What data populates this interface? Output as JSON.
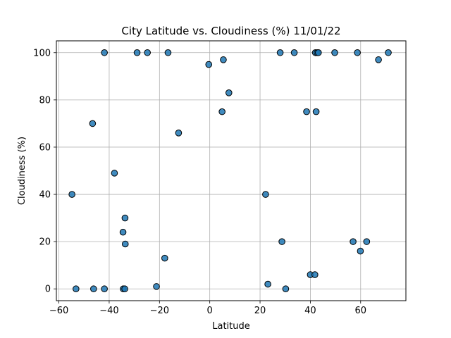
{
  "chart_data": {
    "type": "scatter",
    "title": "City Latitude vs. Cloudiness (%) 11/01/22",
    "xlabel": "Latitude",
    "ylabel": "Cloudiness (%)",
    "xlim": [
      -61,
      78
    ],
    "ylim": [
      -5,
      105
    ],
    "xticks": [
      -60,
      -40,
      -20,
      0,
      20,
      40,
      60
    ],
    "yticks": [
      0,
      20,
      40,
      60,
      80,
      100
    ],
    "grid": true,
    "marker_color": "#1f77b4",
    "marker_edge_color": "#000000",
    "points": [
      {
        "x": -54.8,
        "y": 40
      },
      {
        "x": -53.2,
        "y": 0
      },
      {
        "x": -46.6,
        "y": 70
      },
      {
        "x": -46.2,
        "y": 0
      },
      {
        "x": -41.9,
        "y": 100
      },
      {
        "x": -41.9,
        "y": 0
      },
      {
        "x": -37.9,
        "y": 49
      },
      {
        "x": -34.5,
        "y": 24
      },
      {
        "x": -34.4,
        "y": 0
      },
      {
        "x": -33.8,
        "y": 0
      },
      {
        "x": -33.7,
        "y": 30
      },
      {
        "x": -33.6,
        "y": 19
      },
      {
        "x": -28.9,
        "y": 100
      },
      {
        "x": -24.8,
        "y": 100
      },
      {
        "x": -21.2,
        "y": 1
      },
      {
        "x": -17.9,
        "y": 13
      },
      {
        "x": -16.6,
        "y": 100
      },
      {
        "x": -12.4,
        "y": 66
      },
      {
        "x": -0.4,
        "y": 95
      },
      {
        "x": 4.9,
        "y": 75
      },
      {
        "x": 5.4,
        "y": 97
      },
      {
        "x": 7.6,
        "y": 83
      },
      {
        "x": 22.2,
        "y": 40
      },
      {
        "x": 23.1,
        "y": 2
      },
      {
        "x": 28.0,
        "y": 100
      },
      {
        "x": 28.7,
        "y": 20
      },
      {
        "x": 30.2,
        "y": 0
      },
      {
        "x": 33.6,
        "y": 100
      },
      {
        "x": 38.5,
        "y": 75
      },
      {
        "x": 40.0,
        "y": 6
      },
      {
        "x": 41.8,
        "y": 6
      },
      {
        "x": 42.0,
        "y": 100
      },
      {
        "x": 42.3,
        "y": 75
      },
      {
        "x": 42.7,
        "y": 100
      },
      {
        "x": 43.2,
        "y": 100
      },
      {
        "x": 49.7,
        "y": 100
      },
      {
        "x": 57.0,
        "y": 20
      },
      {
        "x": 58.7,
        "y": 100
      },
      {
        "x": 59.9,
        "y": 16
      },
      {
        "x": 62.4,
        "y": 20
      },
      {
        "x": 67.1,
        "y": 97
      },
      {
        "x": 71.0,
        "y": 100
      }
    ]
  }
}
